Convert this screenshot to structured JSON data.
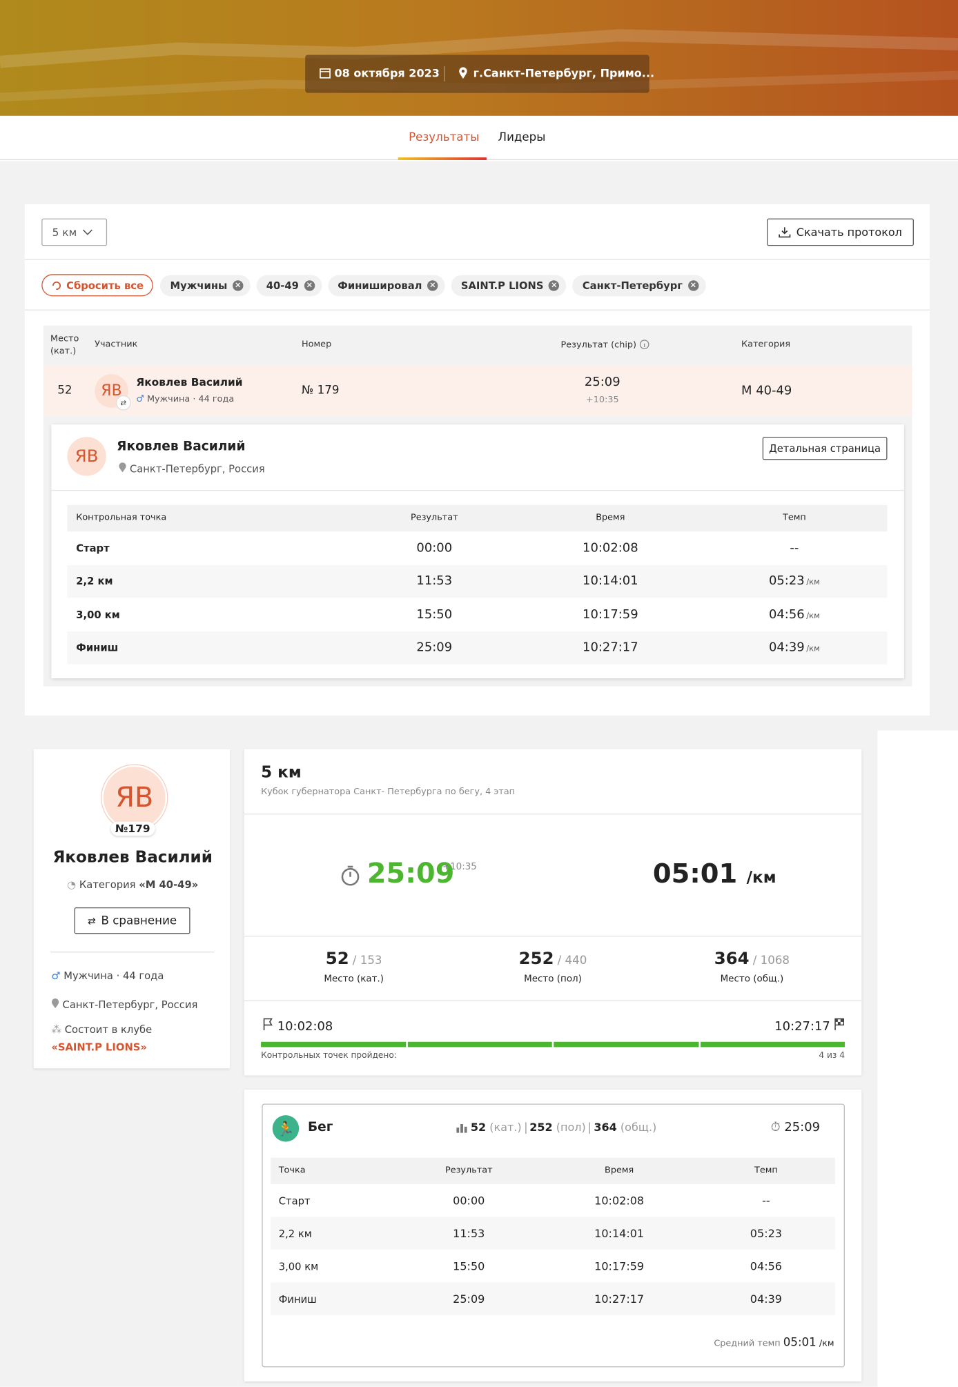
{
  "header": {
    "date": "08 октября 2023",
    "location": "г.Санкт-Петербург, Примо..."
  },
  "tabs": [
    "Результаты",
    "Лидеры"
  ],
  "filters": {
    "distance": "5 км",
    "download": "Скачать протокол",
    "reset": "Сбросить все",
    "chips": [
      "Мужчины",
      "40-49",
      "Финишировал",
      "SAINT.P LIONS",
      "Санкт-Петербург"
    ]
  },
  "results": {
    "headers": [
      "Место (кат.)",
      "Участник",
      "Номер",
      "Результат (chip)",
      "Категория"
    ],
    "row": {
      "place": "52",
      "initials": "ЯВ",
      "name": "Яковлев Василий",
      "info": "Мужчина · 44 года",
      "number": "№ 179",
      "result": "25:09",
      "gap": "+10:35",
      "category": "М 40-49"
    }
  },
  "detail": {
    "initials": "ЯВ",
    "name": "Яковлев Василий",
    "location": "Санкт-Петербург, Россия",
    "button": "Детальная страница",
    "headers": [
      "Контрольная точка",
      "Результат",
      "Время",
      "Темп"
    ],
    "rows": [
      [
        "Старт",
        "00:00",
        "10:02:08",
        "--"
      ],
      [
        "2,2 км",
        "11:53",
        "10:14:01",
        "05:23"
      ],
      [
        "3,00 км",
        "15:50",
        "10:17:59",
        "04:56"
      ],
      [
        "Финиш",
        "25:09",
        "10:27:17",
        "04:39"
      ]
    ],
    "pace_units": [
      null,
      "/км",
      "/км",
      "/км"
    ]
  },
  "profile": {
    "initials": "ЯВ",
    "bib": "№179",
    "name": "Яковлев Василий",
    "category_label": "Категория",
    "category": "«М 40-49»",
    "compare": "В сравнение",
    "info": "Мужчина · 44 года",
    "location": "Санкт-Петербург, Россия",
    "club_label": "Состоит в клубе",
    "club": "«SAINT.P LIONS»"
  },
  "summary": {
    "distance": "5 км",
    "event": "Кубок губернатора Санкт- Петербурга по бегу, 4 этап",
    "time": "25:09",
    "gap": "+10:35",
    "pace": "05:01",
    "pace_unit": "/км",
    "places": [
      {
        "value": "52",
        "total": "/ 153",
        "label": "Место (кат.)"
      },
      {
        "value": "252",
        "total": "/ 440",
        "label": "Место (пол)"
      },
      {
        "value": "364",
        "total": "/ 1068",
        "label": "Место (общ.)"
      }
    ],
    "start": "10:02:08",
    "finish": "10:27:17",
    "checkpoints_label": "Контрольных точек пройдено:",
    "checkpoints": "4 из 4"
  },
  "sport": {
    "name": "Бег",
    "ranks": [
      {
        "value": "52",
        "label": "(кат.)"
      },
      {
        "value": "252",
        "label": "(пол)"
      },
      {
        "value": "364",
        "label": "(общ.)"
      }
    ],
    "time": "25:09",
    "headers": [
      "Точка",
      "Результат",
      "Время",
      "Темп"
    ],
    "rows": [
      [
        "Старт",
        "00:00",
        "10:02:08",
        "--"
      ],
      [
        "2,2 км",
        "11:53",
        "10:14:01",
        "05:23"
      ],
      [
        "3,00 км",
        "15:50",
        "10:17:59",
        "04:56"
      ],
      [
        "Финиш",
        "25:09",
        "10:27:17",
        "04:39"
      ]
    ],
    "avg_label": "Средний темп",
    "avg": "05:01",
    "avg_unit": "/км"
  }
}
